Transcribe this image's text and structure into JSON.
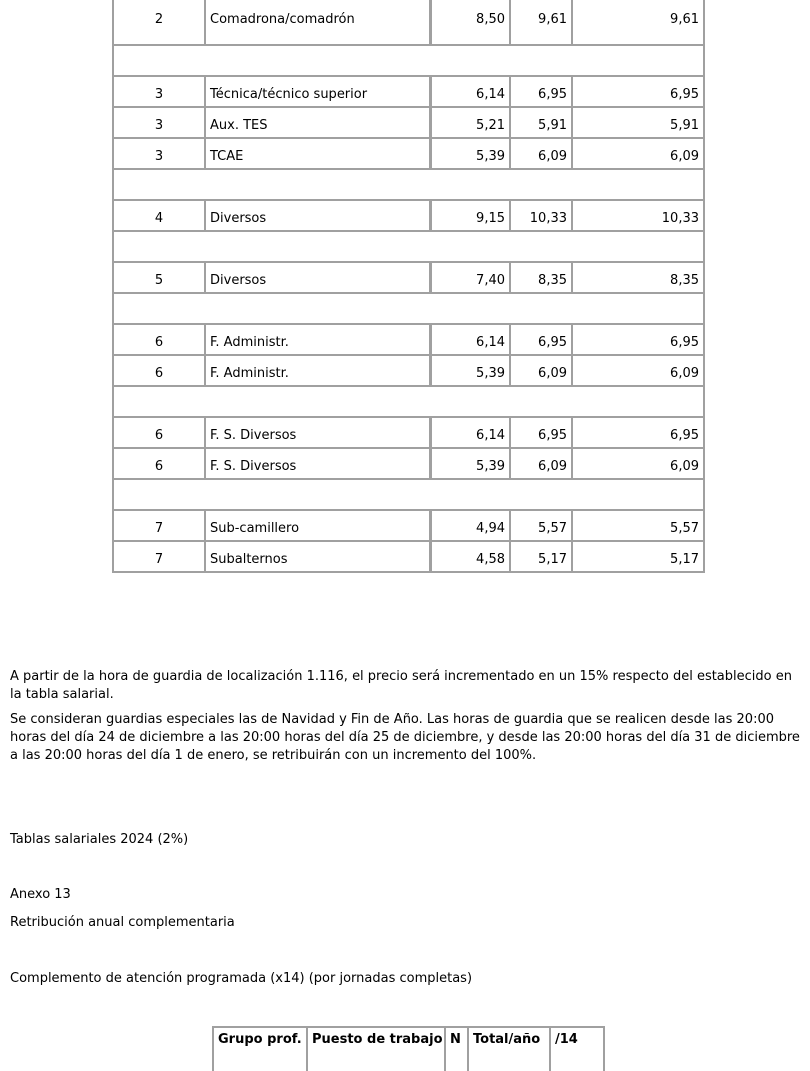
{
  "table": {
    "rows": [
      {
        "grupo": "2",
        "puesto": "Comadrona/comadrón",
        "a": "8,50",
        "b": "9,61",
        "c": "9,61"
      },
      null,
      {
        "grupo": "3",
        "puesto": "Técnica/técnico superior",
        "a": "6,14",
        "b": "6,95",
        "c": "6,95"
      },
      {
        "grupo": "3",
        "puesto": "Aux. TES",
        "a": "5,21",
        "b": "5,91",
        "c": "5,91"
      },
      {
        "grupo": "3",
        "puesto": "TCAE",
        "a": "5,39",
        "b": "6,09",
        "c": "6,09"
      },
      null,
      {
        "grupo": "4",
        "puesto": "Diversos",
        "a": "9,15",
        "b": "10,33",
        "c": "10,33"
      },
      null,
      {
        "grupo": "5",
        "puesto": "Diversos",
        "a": "7,40",
        "b": "8,35",
        "c": "8,35"
      },
      null,
      {
        "grupo": "6",
        "puesto": "F. Administr.",
        "a": "6,14",
        "b": "6,95",
        "c": "6,95"
      },
      {
        "grupo": "6",
        "puesto": "F. Administr.",
        "a": "5,39",
        "b": "6,09",
        "c": "6,09"
      },
      null,
      {
        "grupo": "6",
        "puesto": "F. S. Diversos",
        "a": "6,14",
        "b": "6,95",
        "c": "6,95"
      },
      {
        "grupo": "6",
        "puesto": "F. S. Diversos",
        "a": "5,39",
        "b": "6,09",
        "c": "6,09"
      },
      null,
      {
        "grupo": "7",
        "puesto": "Sub-camillero",
        "a": "4,94",
        "b": "5,57",
        "c": "5,57"
      },
      {
        "grupo": "7",
        "puesto": "Subalternos",
        "a": "4,58",
        "b": "5,17",
        "c": "5,17"
      }
    ]
  },
  "text": {
    "p1": "A partir de la hora de guardia de localización 1.116, el precio será incrementado en un 15% respecto del establecido en la tabla salarial.",
    "p2": "Se consideran guardias especiales las de Navidad y Fin de Año. Las horas de guardia que se realicen desde las 20:00 horas del día 24 de diciembre a las 20:00 horas del día 25 de diciembre, y desde las 20:00 horas del día 31 de diciembre a las 20:00 horas del día 1 de enero, se retribuirán con un incremento del 100%.",
    "p3": "Tablas salariales 2024 (2%)",
    "p4": "Anexo 13",
    "p5": "Retribución anual complementaria",
    "p6": "Complemento de atención programada (x14) (por jornadas completas)"
  },
  "table2": {
    "headers": [
      "Grupo prof.",
      "Puesto de trabajo",
      "N",
      "Total/año",
      "/14"
    ]
  }
}
